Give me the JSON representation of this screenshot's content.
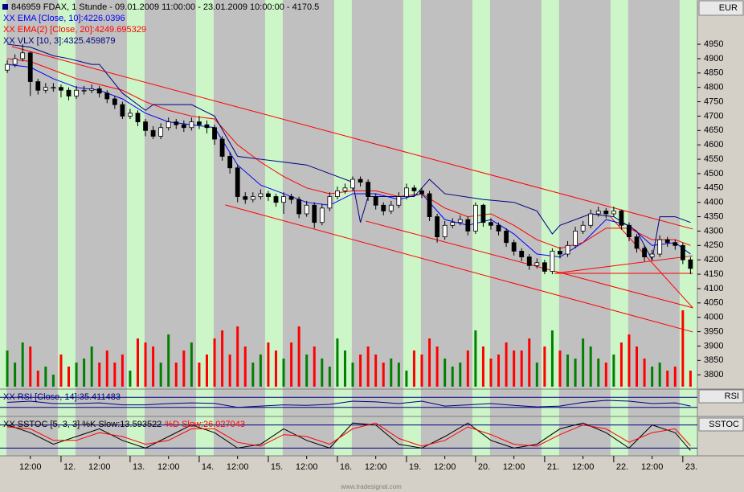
{
  "chart_data": [
    {
      "type": "candlestick",
      "title": "846959  FDAX, 1 Stunde - 09.01.2009 11:00:00 - 23.01.2009 10:00:00 - 4170.5",
      "currency": "EUR",
      "open": [
        4860,
        4880,
        4900,
        4920,
        4820,
        4790,
        4800,
        4800,
        4790,
        4770,
        4790,
        4790,
        4795,
        4780,
        4760,
        4740,
        4700,
        4710,
        4680,
        4650,
        4630,
        4660,
        4680,
        4670,
        4660,
        4680,
        4670,
        4660,
        4620,
        4560,
        4520,
        4420,
        4410,
        4420,
        4430,
        4420,
        4400,
        4420,
        4410,
        4360,
        4390,
        4330,
        4380,
        4420,
        4440,
        4450,
        4480,
        4470,
        4420,
        4390,
        4370,
        4390,
        4420,
        4450,
        4440,
        4430,
        4350,
        4280,
        4320,
        4330,
        4340,
        4300,
        4390,
        4330,
        4320,
        4300,
        4260,
        4230,
        4210,
        4180,
        4190,
        4160,
        4230,
        4220,
        4250,
        4300,
        4320,
        4360,
        4370,
        4360,
        4370,
        4320,
        4280,
        4240,
        4210,
        4220,
        4270,
        4260,
        4250,
        4200
      ],
      "high": [
        4895,
        4915,
        4950,
        4925,
        4830,
        4815,
        4815,
        4810,
        4800,
        4805,
        4805,
        4810,
        4805,
        4790,
        4770,
        4750,
        4725,
        4720,
        4690,
        4665,
        4675,
        4695,
        4690,
        4685,
        4695,
        4700,
        4685,
        4670,
        4630,
        4575,
        4530,
        4435,
        4435,
        4445,
        4440,
        4430,
        4435,
        4430,
        4420,
        4405,
        4400,
        4395,
        4435,
        4455,
        4465,
        4490,
        4490,
        4480,
        4430,
        4400,
        4405,
        4435,
        4465,
        4460,
        4450,
        4440,
        4360,
        4335,
        4345,
        4355,
        4350,
        4400,
        4395,
        4345,
        4330,
        4310,
        4270,
        4240,
        4220,
        4205,
        4200,
        4240,
        4245,
        4265,
        4315,
        4335,
        4375,
        4385,
        4380,
        4385,
        4375,
        4330,
        4290,
        4250,
        4235,
        4285,
        4280,
        4270,
        4260,
        4210
      ],
      "low": [
        4850,
        4870,
        4890,
        4770,
        4775,
        4780,
        4785,
        4765,
        4755,
        4760,
        4775,
        4780,
        4765,
        4745,
        4725,
        4690,
        4690,
        4665,
        4630,
        4620,
        4620,
        4650,
        4655,
        4645,
        4650,
        4655,
        4640,
        4600,
        4545,
        4500,
        4400,
        4395,
        4400,
        4410,
        4405,
        4385,
        4360,
        4395,
        4345,
        4350,
        4310,
        4320,
        4370,
        4410,
        4430,
        4440,
        4455,
        4405,
        4375,
        4355,
        4360,
        4380,
        4410,
        4425,
        4415,
        4335,
        4260,
        4270,
        4310,
        4320,
        4285,
        4290,
        4315,
        4305,
        4285,
        4245,
        4215,
        4195,
        4165,
        4170,
        4150,
        4150,
        4205,
        4210,
        4240,
        4290,
        4310,
        4350,
        4345,
        4350,
        4305,
        4265,
        4225,
        4195,
        4200,
        4210,
        4245,
        4235,
        4185,
        4150
      ],
      "close": [
        4880,
        4900,
        4920,
        4820,
        4790,
        4800,
        4800,
        4790,
        4770,
        4790,
        4790,
        4795,
        4780,
        4760,
        4740,
        4700,
        4710,
        4680,
        4650,
        4630,
        4660,
        4680,
        4670,
        4660,
        4680,
        4670,
        4660,
        4620,
        4560,
        4520,
        4420,
        4410,
        4420,
        4430,
        4420,
        4400,
        4420,
        4410,
        4360,
        4390,
        4330,
        4380,
        4420,
        4440,
        4450,
        4480,
        4470,
        4420,
        4390,
        4370,
        4390,
        4420,
        4450,
        4440,
        4430,
        4350,
        4280,
        4320,
        4330,
        4340,
        4300,
        4390,
        4330,
        4320,
        4300,
        4260,
        4230,
        4210,
        4180,
        4190,
        4160,
        4230,
        4220,
        4250,
        4300,
        4320,
        4360,
        4370,
        4360,
        4370,
        4320,
        4280,
        4240,
        4210,
        4220,
        4270,
        4260,
        4250,
        4200,
        4170
      ],
      "up_color": "#ffffff",
      "down_color": "#000000",
      "ylim": [
        3753,
        5104
      ],
      "yticks": [
        3800,
        3850,
        3900,
        3950,
        4000,
        4050,
        4100,
        4150,
        4200,
        4250,
        4300,
        4350,
        4400,
        4450,
        4500,
        4550,
        4600,
        4650,
        4700,
        4750,
        4800,
        4850,
        4900,
        4950
      ],
      "xlim": [
        -0.95,
        89.9
      ],
      "xticks": [
        {
          "value": 3,
          "label": "12:00"
        },
        {
          "value": 7,
          "label": "12."
        },
        {
          "value": 12,
          "label": "12:00"
        },
        {
          "value": 16,
          "label": "13."
        },
        {
          "value": 21,
          "label": "12:00"
        },
        {
          "value": 25,
          "label": "14."
        },
        {
          "value": 30,
          "label": "12:00"
        },
        {
          "value": 34,
          "label": "15."
        },
        {
          "value": 39,
          "label": "12:00"
        },
        {
          "value": 43,
          "label": "16."
        },
        {
          "value": 48,
          "label": "12:00"
        },
        {
          "value": 52,
          "label": "19."
        },
        {
          "value": 57,
          "label": "12:00"
        },
        {
          "value": 61,
          "label": "20."
        },
        {
          "value": 66,
          "label": "12:00"
        },
        {
          "value": 70,
          "label": "21."
        },
        {
          "value": 75,
          "label": "12:00"
        },
        {
          "value": 79,
          "label": "22."
        },
        {
          "value": 84,
          "label": "12:00"
        },
        {
          "value": 88,
          "label": "23."
        }
      ],
      "series": [
        {
          "name": "XX EMA [Close, 10]:4226.0396",
          "color": "#0000ff",
          "x": [
            0,
            3,
            6,
            9,
            12,
            15,
            18,
            21,
            24,
            27,
            30,
            33,
            36,
            39,
            42,
            45,
            48,
            51,
            54,
            57,
            60,
            63,
            66,
            69,
            72,
            75,
            78,
            81,
            84,
            87,
            89
          ],
          "values": [
            4880,
            4870,
            4830,
            4800,
            4790,
            4760,
            4710,
            4680,
            4670,
            4660,
            4530,
            4460,
            4430,
            4400,
            4390,
            4430,
            4430,
            4410,
            4430,
            4340,
            4320,
            4340,
            4290,
            4220,
            4210,
            4260,
            4340,
            4320,
            4250,
            4260,
            4220
          ]
        },
        {
          "name": "XX EMA(2) [Close, 20]:4249.695329",
          "color": "#ff0000",
          "x": [
            0,
            3,
            6,
            9,
            12,
            15,
            18,
            21,
            24,
            27,
            30,
            33,
            36,
            39,
            42,
            45,
            48,
            51,
            54,
            57,
            60,
            63,
            66,
            69,
            72,
            75,
            78,
            81,
            84,
            87,
            89
          ],
          "values": [
            4900,
            4890,
            4860,
            4830,
            4810,
            4790,
            4750,
            4720,
            4700,
            4690,
            4600,
            4540,
            4490,
            4450,
            4430,
            4440,
            4440,
            4420,
            4430,
            4380,
            4350,
            4360,
            4320,
            4270,
            4240,
            4260,
            4310,
            4310,
            4270,
            4270,
            4250
          ]
        },
        {
          "name": "XX VLX [10, 3]:4325.459879",
          "color": "#000080",
          "x": [
            0,
            3,
            6,
            8,
            11,
            12,
            15,
            18,
            19,
            24,
            27,
            30,
            33,
            36,
            39,
            42,
            45,
            46,
            47,
            50,
            53,
            55,
            57,
            62,
            66,
            69,
            71,
            72,
            76,
            79,
            82,
            84,
            85,
            87,
            89
          ],
          "values": [
            4950,
            4940,
            4910,
            4900,
            4880,
            4880,
            4780,
            4720,
            4740,
            4740,
            4700,
            4560,
            4550,
            4540,
            4530,
            4500,
            4470,
            4330,
            4420,
            4420,
            4420,
            4480,
            4430,
            4410,
            4400,
            4370,
            4290,
            4320,
            4360,
            4350,
            4300,
            4200,
            4350,
            4350,
            4330
          ]
        }
      ],
      "volume": {
        "values": [
          45,
          30,
          55,
          50,
          20,
          25,
          15,
          40,
          25,
          30,
          35,
          50,
          30,
          45,
          30,
          40,
          20,
          60,
          55,
          50,
          30,
          65,
          30,
          45,
          55,
          30,
          40,
          60,
          70,
          40,
          75,
          50,
          30,
          40,
          55,
          45,
          35,
          55,
          75,
          40,
          50,
          35,
          25,
          60,
          45,
          30,
          40,
          50,
          40,
          30,
          35,
          30,
          20,
          45,
          40,
          60,
          50,
          35,
          25,
          30,
          45,
          70,
          50,
          35,
          40,
          55,
          45,
          45,
          60,
          30,
          50,
          70,
          45,
          40,
          35,
          60,
          50,
          35,
          30,
          40,
          55,
          65,
          50,
          35,
          25,
          30,
          20,
          25,
          95,
          20
        ],
        "vlim": [
          0,
          100
        ],
        "up_color": "#008000",
        "down_color": "#ff0000"
      },
      "trendline_color": "#ff0000",
      "trendlines": [
        {
          "x": [
            0.6,
            89.3
          ],
          "y": [
            4942,
            4307
          ]
        },
        {
          "x": [
            28.4,
            89.3
          ],
          "y": [
            4391,
            3949
          ]
        },
        {
          "x": [
            46.7,
            89.3
          ],
          "y": [
            4335,
            4033
          ]
        },
        {
          "x": [
            71.3,
            89.3
          ],
          "y": [
            4153,
            4214
          ]
        },
        {
          "x": [
            71.3,
            89.3
          ],
          "y": [
            4153,
            4153
          ]
        },
        {
          "x": [
            78.6,
            89.3
          ],
          "y": [
            4349,
            4033
          ]
        }
      ]
    },
    {
      "type": "line",
      "label": "RSI",
      "ylim": [
        0,
        100
      ],
      "levels": [
        30,
        70
      ],
      "level_color": "#000080",
      "series": [
        {
          "name": "XX RSI [Close, 14]:35.411483",
          "color": "#000080",
          "x": [
            0,
            3,
            6,
            9,
            12,
            15,
            18,
            21,
            24,
            27,
            30,
            33,
            36,
            39,
            42,
            45,
            48,
            51,
            54,
            57,
            60,
            63,
            66,
            69,
            72,
            75,
            78,
            81,
            84,
            87,
            89
          ],
          "values": [
            50,
            55,
            45,
            45,
            48,
            40,
            40,
            45,
            48,
            46,
            30,
            35,
            40,
            38,
            42,
            55,
            52,
            45,
            55,
            35,
            40,
            45,
            38,
            32,
            35,
            50,
            58,
            55,
            45,
            48,
            35
          ]
        }
      ]
    },
    {
      "type": "line",
      "label": "SSTOC",
      "ylim": [
        0,
        100
      ],
      "levels": [
        20,
        80
      ],
      "level_color": "#000080",
      "series": [
        {
          "name": "XX SSTOC [5, 3, 3] %K Slow:13.593522",
          "color": "#000000",
          "x": [
            0,
            3,
            6,
            9,
            12,
            15,
            18,
            21,
            24,
            27,
            30,
            33,
            36,
            39,
            42,
            45,
            48,
            51,
            54,
            57,
            60,
            63,
            66,
            69,
            72,
            75,
            78,
            81,
            84,
            87,
            89
          ],
          "values": [
            80,
            60,
            30,
            50,
            70,
            40,
            20,
            50,
            80,
            60,
            20,
            30,
            70,
            40,
            20,
            85,
            80,
            30,
            20,
            50,
            85,
            40,
            20,
            30,
            70,
            85,
            60,
            20,
            80,
            60,
            14
          ]
        },
        {
          "name": "%D Slow:26.027043",
          "color": "#ff0000",
          "x": [
            0,
            3,
            6,
            9,
            12,
            15,
            18,
            21,
            24,
            27,
            30,
            33,
            36,
            39,
            42,
            45,
            48,
            51,
            54,
            57,
            60,
            63,
            66,
            69,
            72,
            75,
            78,
            81,
            84,
            87,
            89
          ],
          "values": [
            75,
            70,
            40,
            40,
            60,
            50,
            30,
            40,
            70,
            70,
            35,
            25,
            55,
            50,
            30,
            70,
            85,
            45,
            25,
            40,
            75,
            55,
            30,
            25,
            55,
            80,
            70,
            35,
            60,
            70,
            26
          ]
        }
      ]
    }
  ],
  "footer": "www.tradesignal.com"
}
